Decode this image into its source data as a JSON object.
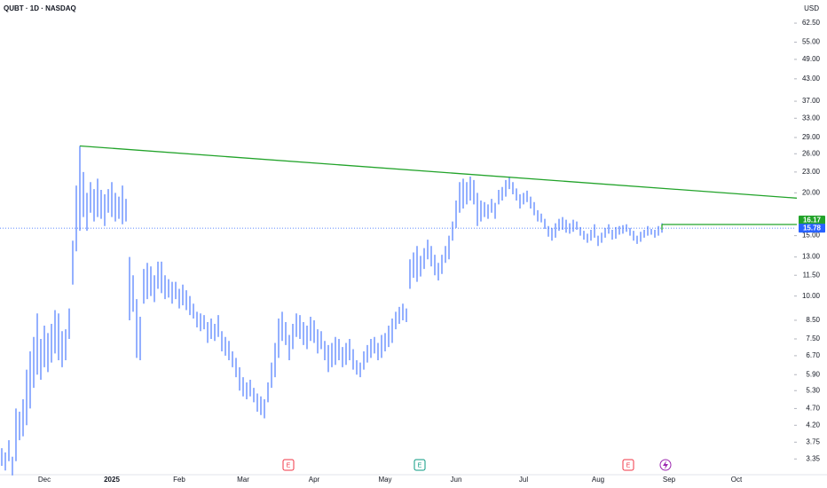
{
  "chart_data": {
    "type": "ohlc-range",
    "title": "QUBT · 1D · NASDAQ",
    "currency": "USD",
    "log_scale": true,
    "grid": false,
    "color": "#2962ff",
    "categories": [
      null,
      null,
      null,
      null,
      null,
      null,
      null,
      null,
      null,
      null,
      null,
      null,
      "Dec",
      null,
      null,
      null,
      null,
      null,
      null,
      null,
      null,
      null,
      null,
      null,
      null,
      null,
      null,
      null,
      null,
      null,
      null,
      "2025",
      null,
      null,
      null,
      null,
      null,
      null,
      null,
      null,
      null,
      null,
      null,
      null,
      null,
      null,
      null,
      null,
      null,
      null,
      "Feb",
      null,
      null,
      null,
      null,
      null,
      null,
      null,
      null,
      null,
      null,
      null,
      null,
      null,
      null,
      null,
      null,
      null,
      "Mar",
      null,
      null,
      null,
      null,
      null,
      null,
      null,
      null,
      null,
      null,
      null,
      null,
      null,
      null,
      null,
      null,
      null,
      null,
      null,
      "Apr",
      null,
      null,
      null,
      null,
      null,
      null,
      null,
      null,
      null,
      null,
      null,
      null,
      null,
      null,
      null,
      null,
      null,
      null,
      null,
      "May",
      null,
      null,
      null,
      null,
      null,
      null,
      null,
      null,
      null,
      null,
      null,
      null,
      null,
      null,
      null,
      null,
      null,
      null,
      null,
      "Jun",
      null,
      null,
      null,
      null,
      null,
      null,
      null,
      null,
      null,
      null,
      null,
      null,
      null,
      null,
      null,
      null,
      null,
      null,
      "Jul",
      null,
      null,
      null,
      null,
      null,
      null,
      null,
      null,
      null,
      null,
      null,
      null,
      null,
      null,
      null,
      null,
      null,
      null,
      null,
      null,
      "Aug",
      null,
      null,
      null,
      null,
      null,
      null,
      null,
      null,
      null,
      null,
      null,
      null,
      null,
      null,
      null,
      null,
      null,
      null,
      null,
      "Sep",
      null,
      null,
      null,
      null,
      null,
      null,
      null,
      null,
      null,
      null,
      null,
      null,
      null,
      null,
      null,
      null,
      null,
      null,
      "Oct"
    ],
    "lows": [
      3.2,
      3.1,
      3.3,
      3.0,
      3.3,
      3.8,
      3.9,
      4.2,
      4.7,
      5.4,
      5.9,
      5.7,
      6.2,
      6.0,
      6.4,
      6.8,
      6.5,
      6.2,
      6.5,
      7.5,
      10.8,
      13.5,
      15.5,
      17,
      15.5,
      17.5,
      16.5,
      17,
      16.8,
      16,
      17.5,
      17,
      16.5,
      16.8,
      16.2,
      16.5,
      8.5,
      9,
      6.6,
      6.5,
      9.5,
      9.8,
      10,
      9.6,
      10.5,
      10.2,
      9.8,
      9.9,
      9.5,
      9.8,
      9.2,
      9.4,
      9.1,
      8.8,
      8.6,
      8.1,
      7.9,
      8.0,
      7.3,
      7.5,
      7.4,
      7.6,
      6.9,
      6.7,
      6.5,
      6.2,
      5.8,
      5.3,
      5.1,
      5.0,
      5.1,
      4.9,
      4.6,
      4.5,
      4.4,
      4.9,
      5.4,
      5.8,
      6.6,
      7.4,
      7.2,
      6.5,
      7.0,
      7.6,
      7.5,
      7.2,
      7.0,
      7.4,
      7.3,
      6.8,
      7.0,
      6.5,
      6.0,
      6.2,
      6.3,
      6.5,
      6.2,
      6.3,
      6.5,
      6.1,
      5.9,
      5.8,
      6.1,
      6.4,
      6.6,
      6.8,
      6.5,
      6.6,
      6.9,
      7.1,
      7.3,
      8.0,
      8.3,
      8.5,
      8.4,
      10.5,
      11.3,
      11.0,
      11.4,
      12.0,
      12.8,
      12.2,
      11.5,
      11.1,
      11.6,
      12.5,
      12.8,
      14.5,
      15.8,
      17.5,
      18,
      18.5,
      19,
      18.5,
      16,
      16.5,
      17,
      16.8,
      17.5,
      16.8,
      18.5,
      19.0,
      19.5,
      20.5,
      19.8,
      19.0,
      18.0,
      18.5,
      18.8,
      18.0,
      17.2,
      16.5,
      16.4,
      15.7,
      14.9,
      14.5,
      14.8,
      15.5,
      15.6,
      15.3,
      15.2,
      15.4,
      15.6,
      15.0,
      14.6,
      14.3,
      14.5,
      14.8,
      14.0,
      14.3,
      14.8,
      15.2,
      14.6,
      14.7,
      15.1,
      15.2,
      15.4,
      15.0,
      14.5,
      14.2,
      14.4,
      14.8,
      15.0,
      15.1,
      14.8,
      15.0,
      15.3,
      null,
      null,
      null,
      null,
      null,
      null,
      null,
      null,
      null,
      null,
      null,
      null,
      null,
      null,
      null,
      null,
      null,
      null,
      null,
      null,
      null
    ],
    "highs": [
      3.6,
      3.5,
      3.8,
      3.4,
      4.7,
      4.6,
      5.0,
      6.1,
      6.9,
      7.6,
      8.9,
      7.5,
      8.2,
      7.8,
      8.3,
      9.1,
      8.9,
      7.9,
      8.0,
      9.2,
      14.5,
      21,
      27.4,
      23,
      20,
      21.5,
      20.5,
      22,
      20.4,
      19.8,
      20.5,
      21.5,
      20,
      19.5,
      21,
      19.2,
      13,
      11.5,
      9.8,
      8.7,
      12,
      12.5,
      12.2,
      11.5,
      12.6,
      12.6,
      11.5,
      11.2,
      11,
      11,
      10.5,
      10.8,
      10.4,
      10,
      9.5,
      9.0,
      8.9,
      8.8,
      8.4,
      8.6,
      8.3,
      8.8,
      7.9,
      7.6,
      7.4,
      6.9,
      6.6,
      6.2,
      5.8,
      5.6,
      5.7,
      5.4,
      5.2,
      5.1,
      5.0,
      5.6,
      6.4,
      7.3,
      8.6,
      9.0,
      8.4,
      7.7,
      8.3,
      8.9,
      8.8,
      8.4,
      8.2,
      8.7,
      8.5,
      8.0,
      7.9,
      7.4,
      7.2,
      7.3,
      7.6,
      7.5,
      7.1,
      7.3,
      7.5,
      7.0,
      6.5,
      6.4,
      6.9,
      7.2,
      7.5,
      7.6,
      7.3,
      7.7,
      7.8,
      8.2,
      8.6,
      9.0,
      9.3,
      9.5,
      9.2,
      12.8,
      13.4,
      14.0,
      13.1,
      13.8,
      14.6,
      14.0,
      13.2,
      12.5,
      13.2,
      14.0,
      15.0,
      16.5,
      19.0,
      21.5,
      22,
      21.5,
      22.3,
      21.8,
      20,
      19.0,
      18.8,
      18.5,
      19.2,
      18.7,
      20.4,
      20.8,
      21.8,
      22.3,
      21.5,
      20.6,
      19.8,
      20.0,
      20.3,
      19.5,
      18.8,
      17.8,
      17.4,
      16.8,
      16.0,
      15.8,
      16.3,
      16.8,
      17.0,
      16.7,
      16.3,
      16.7,
      16.5,
      15.9,
      15.5,
      15.2,
      15.6,
      16.2,
      15.0,
      15.3,
      15.8,
      16.2,
      15.6,
      15.9,
      16.0,
      16.1,
      16.2,
      15.8,
      15.5,
      15.0,
      15.4,
      15.6,
      16.0,
      15.7,
      15.6,
      16.0,
      16.3,
      null,
      null,
      null,
      null,
      null,
      null,
      null,
      null,
      null,
      null,
      null,
      null,
      null,
      null,
      null,
      null,
      null,
      null,
      null,
      null,
      null
    ],
    "ylim": [
      3.05,
      73
    ],
    "yticks": [
      {
        "value": 62.5,
        "label": "62.50"
      },
      {
        "value": 55,
        "label": "55.00"
      },
      {
        "value": 49,
        "label": "49.00"
      },
      {
        "value": 43,
        "label": "43.00"
      },
      {
        "value": 37,
        "label": "37.00"
      },
      {
        "value": 33,
        "label": "33.00"
      },
      {
        "value": 29,
        "label": "29.00"
      },
      {
        "value": 26,
        "label": "26.00"
      },
      {
        "value": 23,
        "label": "23.00"
      },
      {
        "value": 20,
        "label": "20.00"
      },
      {
        "value": 15,
        "label": "15.00"
      },
      {
        "value": 13,
        "label": "13.00"
      },
      {
        "value": 11.5,
        "label": "11.50"
      },
      {
        "value": 10,
        "label": "10.00"
      },
      {
        "value": 8.5,
        "label": "8.50"
      },
      {
        "value": 7.5,
        "label": "7.50"
      },
      {
        "value": 6.7,
        "label": "6.70"
      },
      {
        "value": 5.9,
        "label": "5.90"
      },
      {
        "value": 5.3,
        "label": "5.30"
      },
      {
        "value": 4.7,
        "label": "4.70"
      },
      {
        "value": 4.2,
        "label": "4.20"
      },
      {
        "value": 3.75,
        "label": "3.75"
      },
      {
        "value": 3.35,
        "label": "3.35"
      }
    ],
    "trendline": {
      "color": "#22a32a",
      "x": [
        22,
        224
      ],
      "values": [
        27.4,
        19.3
      ]
    },
    "level": {
      "color": "#22a32a",
      "x": [
        186,
        224
      ],
      "value": 16.17,
      "label": "16.17"
    },
    "last_price": {
      "color": "#2962ff",
      "value": 15.78,
      "label": "15.78"
    },
    "events": [
      "E",
      "E",
      "E"
    ]
  }
}
